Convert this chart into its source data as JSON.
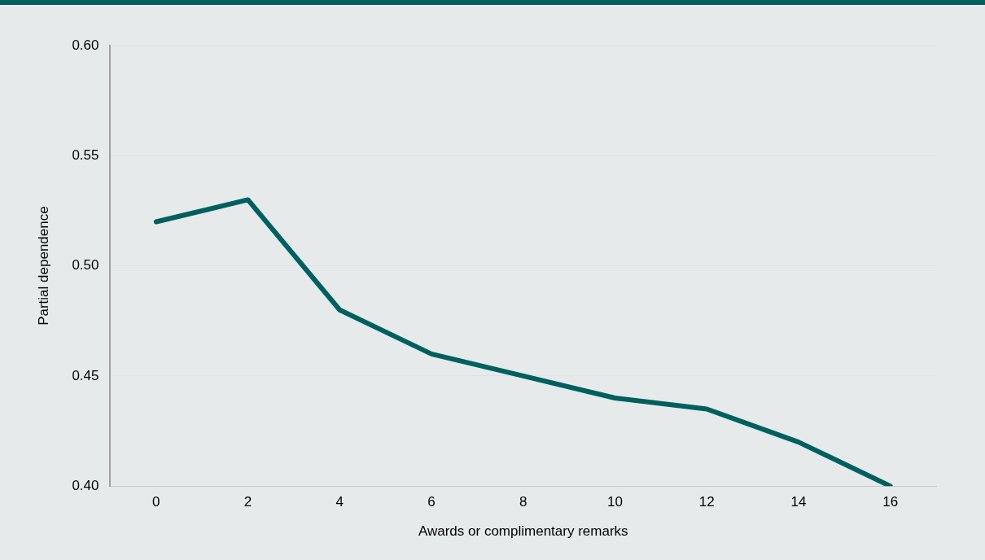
{
  "chart_data": {
    "type": "line",
    "xlabel": "Awards or complimentary remarks",
    "ylabel": "Partial dependence",
    "x": [
      0,
      2,
      4,
      6,
      8,
      10,
      12,
      14,
      16
    ],
    "series": [
      {
        "color": "#005f5f",
        "values": [
          0.52,
          0.53,
          0.48,
          0.46,
          0.45,
          0.44,
          0.435,
          0.42,
          0.4
        ]
      }
    ],
    "xlim": [
      -1,
      17
    ],
    "xticks": [
      0,
      2,
      4,
      6,
      8,
      10,
      12,
      14,
      16
    ],
    "ylim": [
      0.4,
      0.6
    ],
    "yticks": [
      {
        "value": 0.4,
        "label": "0.40"
      },
      {
        "value": 0.45,
        "label": "0.45"
      },
      {
        "value": 0.5,
        "label": "0.50"
      },
      {
        "value": 0.55,
        "label": "0.55"
      },
      {
        "value": 0.6,
        "label": "0.60"
      }
    ],
    "grid": "y",
    "legend": false,
    "marker": "none",
    "line_style": "solid"
  }
}
